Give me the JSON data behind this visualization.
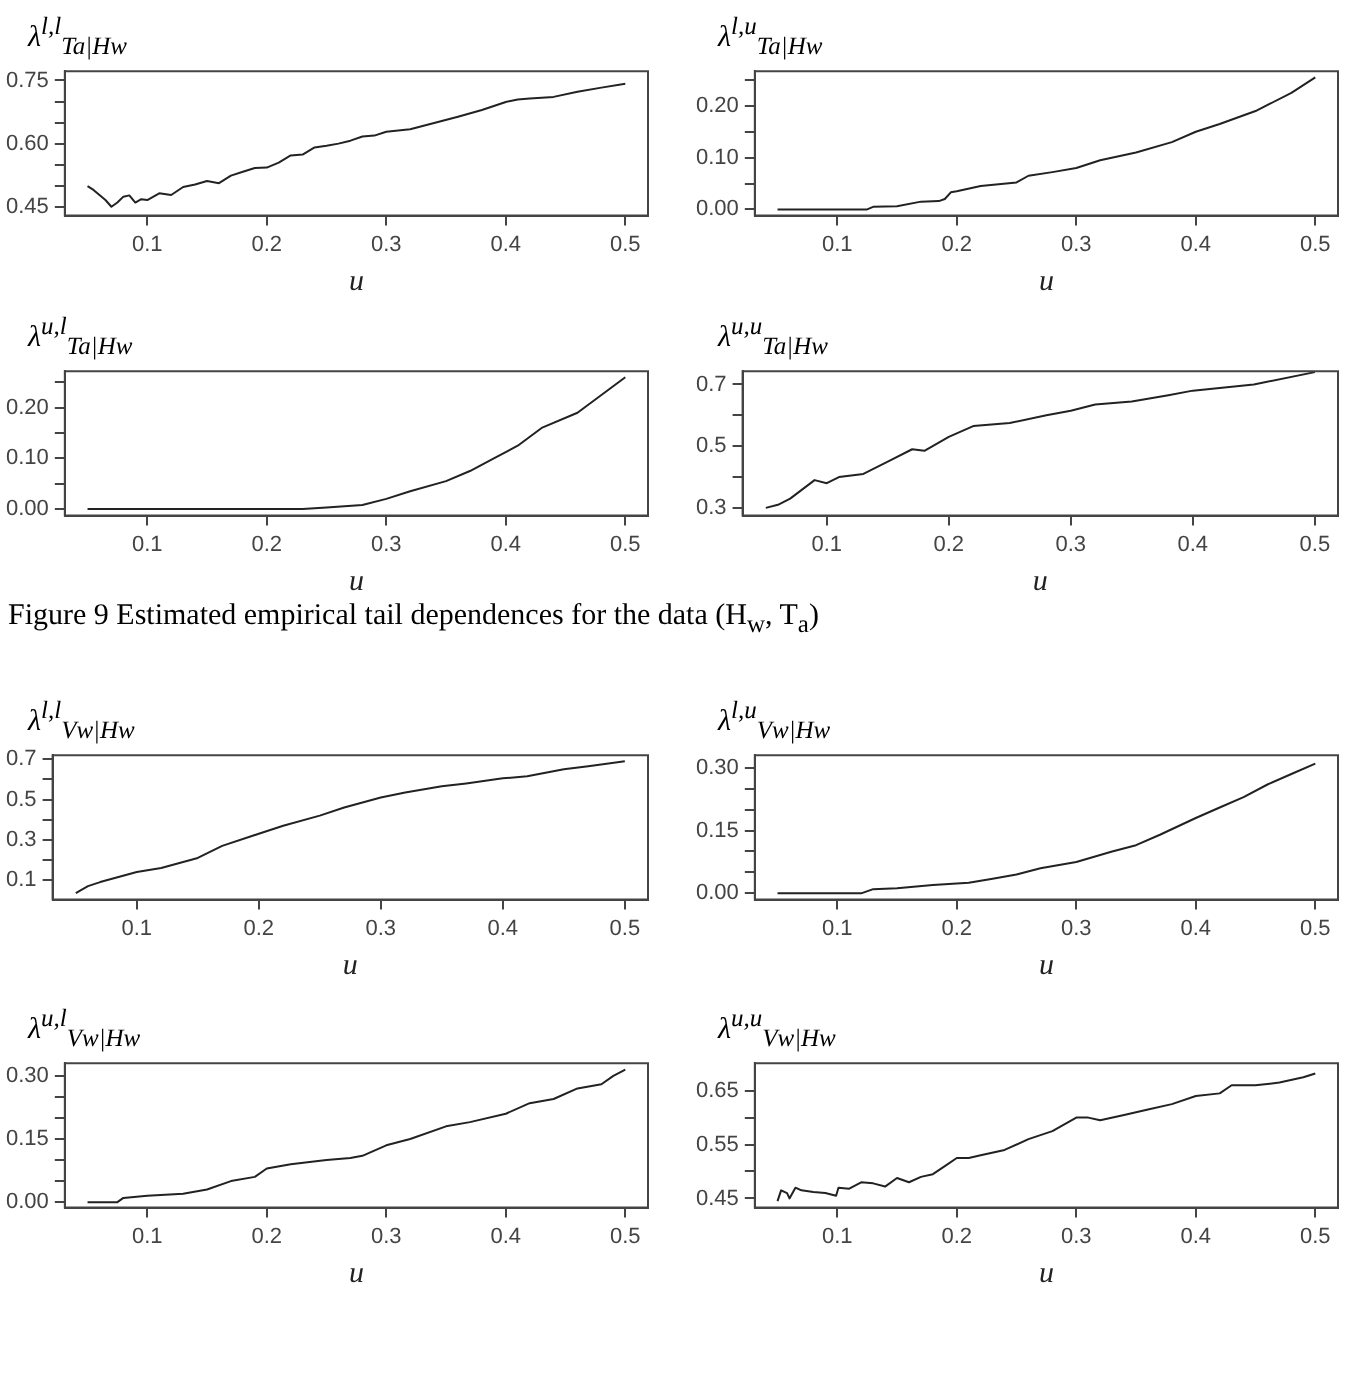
{
  "chart_data": [
    {
      "type": "line",
      "title": "λ$^{l,l}$$_{Ta|Hw}$",
      "xlabel": "u",
      "color": "#222222",
      "xlim": [
        0.031,
        0.519
      ],
      "ylim": [
        0.429,
        0.772
      ],
      "xticks": [
        0.1,
        0.2,
        0.3,
        0.4,
        0.5
      ],
      "yticks": [
        0.45,
        {
          "value": 0.5,
          "label": null
        },
        {
          "value": 0.55,
          "label": null
        },
        {
          "value": 0.6,
          "label": "0.60"
        },
        {
          "value": 0.65,
          "label": null
        },
        {
          "value": 0.7,
          "label": null
        },
        0.75
      ],
      "x": [
        0.05,
        0.055,
        0.06,
        0.065,
        0.07,
        0.075,
        0.08,
        0.085,
        0.09,
        0.095,
        0.1,
        0.11,
        0.12,
        0.13,
        0.14,
        0.15,
        0.16,
        0.17,
        0.18,
        0.19,
        0.2,
        0.21,
        0.22,
        0.23,
        0.24,
        0.25,
        0.26,
        0.27,
        0.28,
        0.29,
        0.3,
        0.32,
        0.34,
        0.36,
        0.38,
        0.4,
        0.41,
        0.42,
        0.44,
        0.46,
        0.48,
        0.5
      ],
      "values": [
        0.499,
        0.49,
        0.478,
        0.466,
        0.45,
        0.46,
        0.474,
        0.477,
        0.46,
        0.468,
        0.466,
        0.482,
        0.478,
        0.497,
        0.503,
        0.511,
        0.506,
        0.524,
        0.533,
        0.542,
        0.543,
        0.555,
        0.572,
        0.574,
        0.591,
        0.595,
        0.6,
        0.607,
        0.617,
        0.619,
        0.628,
        0.634,
        0.649,
        0.664,
        0.68,
        0.699,
        0.705,
        0.707,
        0.711,
        0.723,
        0.733,
        0.742
      ]
    },
    {
      "type": "line",
      "title": "λ$^{l,u}$$_{Ta|Hw}$",
      "xlabel": "u",
      "color": "#222222",
      "xlim": [
        0.031,
        0.519
      ],
      "ylim": [
        -0.012,
        0.267
      ],
      "xticks": [
        0.1,
        0.2,
        0.3,
        0.4,
        0.5
      ],
      "yticks": [
        {
          "value": 0,
          "label": "0.00"
        },
        {
          "value": 0.05,
          "label": null
        },
        {
          "value": 0.1,
          "label": "0.10"
        },
        {
          "value": 0.15,
          "label": null
        },
        {
          "value": 0.2,
          "label": "0.20"
        },
        {
          "value": 0.25,
          "label": null
        }
      ],
      "x": [
        0.05,
        0.1,
        0.125,
        0.13,
        0.15,
        0.17,
        0.185,
        0.19,
        0.195,
        0.2,
        0.22,
        0.25,
        0.26,
        0.28,
        0.3,
        0.32,
        0.35,
        0.38,
        0.4,
        0.42,
        0.45,
        0.48,
        0.5
      ],
      "values": [
        0,
        0,
        0,
        0.005,
        0.006,
        0.015,
        0.016,
        0.02,
        0.033,
        0.035,
        0.045,
        0.052,
        0.065,
        0.072,
        0.08,
        0.095,
        0.11,
        0.13,
        0.15,
        0.165,
        0.19,
        0.225,
        0.255
      ]
    },
    {
      "type": "line",
      "title": "λ$^{u,l}$$_{Ta|Hw}$",
      "xlabel": "u",
      "color": "#222222",
      "xlim": [
        0.031,
        0.519
      ],
      "ylim": [
        -0.013,
        0.272
      ],
      "xticks": [
        0.1,
        0.2,
        0.3,
        0.4,
        0.5
      ],
      "yticks": [
        {
          "value": 0,
          "label": "0.00"
        },
        {
          "value": 0.05,
          "label": null
        },
        {
          "value": 0.1,
          "label": "0.10"
        },
        {
          "value": 0.15,
          "label": null
        },
        {
          "value": 0.2,
          "label": "0.20"
        },
        {
          "value": 0.25,
          "label": null
        }
      ],
      "x": [
        0.05,
        0.1,
        0.2,
        0.23,
        0.25,
        0.28,
        0.3,
        0.32,
        0.35,
        0.37,
        0.39,
        0.41,
        0.43,
        0.46,
        0.48,
        0.5
      ],
      "values": [
        0,
        0,
        0,
        0,
        0.003,
        0.008,
        0.02,
        0.035,
        0.055,
        0.075,
        0.1,
        0.125,
        0.16,
        0.19,
        0.225,
        0.26
      ]
    },
    {
      "type": "line",
      "title": "λ$^{u,u}$$_{Ta|Hw}$",
      "xlabel": "u",
      "color": "#222222",
      "xlim": [
        0.031,
        0.519
      ],
      "ylim": [
        0.275,
        0.743
      ],
      "xticks": [
        0.1,
        0.2,
        0.3,
        0.4,
        0.5
      ],
      "yticks": [
        0.3,
        {
          "value": 0.4,
          "label": null
        },
        0.5,
        {
          "value": 0.6,
          "label": null
        },
        0.7
      ],
      "x": [
        0.05,
        0.06,
        0.07,
        0.08,
        0.09,
        0.1,
        0.11,
        0.13,
        0.15,
        0.17,
        0.18,
        0.2,
        0.22,
        0.25,
        0.28,
        0.3,
        0.32,
        0.35,
        0.38,
        0.4,
        0.45,
        0.5
      ],
      "values": [
        0.3,
        0.31,
        0.33,
        0.36,
        0.39,
        0.38,
        0.4,
        0.41,
        0.45,
        0.49,
        0.485,
        0.53,
        0.565,
        0.575,
        0.6,
        0.615,
        0.635,
        0.645,
        0.665,
        0.68,
        0.7,
        0.74
      ]
    },
    {
      "type": "other",
      "title": "Figure 9 Estimated empirical tail dependences for the data (H$_{w}$, T$_{a}$)"
    },
    {
      "type": "line",
      "title": "λ$^{l,l}$$_{Vw|Hw}$",
      "xlabel": "u",
      "color": "#222222",
      "xlim": [
        0.031,
        0.519
      ],
      "ylim": [
        0.003,
        0.72
      ],
      "xticks": [
        0.1,
        0.2,
        0.3,
        0.4,
        0.5
      ],
      "yticks": [
        0.1,
        {
          "value": 0.2,
          "label": null
        },
        0.3,
        {
          "value": 0.4,
          "label": null
        },
        0.5,
        {
          "value": 0.6,
          "label": null
        },
        0.7
      ],
      "x": [
        0.05,
        0.06,
        0.07,
        0.1,
        0.12,
        0.15,
        0.17,
        0.2,
        0.22,
        0.25,
        0.27,
        0.3,
        0.32,
        0.35,
        0.37,
        0.4,
        0.42,
        0.45,
        0.47,
        0.5
      ],
      "values": [
        0.035,
        0.07,
        0.09,
        0.14,
        0.16,
        0.21,
        0.27,
        0.33,
        0.37,
        0.42,
        0.46,
        0.51,
        0.535,
        0.566,
        0.58,
        0.605,
        0.615,
        0.65,
        0.665,
        0.69
      ]
    },
    {
      "type": "line",
      "title": "λ$^{l,u}$$_{Vw|Hw}$",
      "xlabel": "u",
      "color": "#222222",
      "xlim": [
        0.031,
        0.519
      ],
      "ylim": [
        -0.015,
        0.33
      ],
      "xticks": [
        0.1,
        0.2,
        0.3,
        0.4,
        0.5
      ],
      "yticks": [
        {
          "value": 0,
          "label": "0.00"
        },
        {
          "value": 0.05,
          "label": null
        },
        {
          "value": 0.1,
          "label": null
        },
        0.15,
        {
          "value": 0.2,
          "label": null
        },
        {
          "value": 0.25,
          "label": null
        },
        {
          "value": 0.3,
          "label": "0.30"
        }
      ],
      "x": [
        0.05,
        0.1,
        0.12,
        0.13,
        0.15,
        0.18,
        0.21,
        0.23,
        0.25,
        0.27,
        0.3,
        0.33,
        0.35,
        0.37,
        0.4,
        0.42,
        0.44,
        0.46,
        0.48,
        0.5
      ],
      "values": [
        0,
        0,
        0,
        0.01,
        0.012,
        0.02,
        0.025,
        0.035,
        0.045,
        0.06,
        0.075,
        0.1,
        0.115,
        0.14,
        0.18,
        0.205,
        0.23,
        0.26,
        0.285,
        0.31
      ]
    },
    {
      "type": "line",
      "title": "λ$^{u,l}$$_{Vw|Hw}$",
      "xlabel": "u",
      "color": "#222222",
      "xlim": [
        0.031,
        0.519
      ],
      "ylim": [
        -0.013,
        0.33
      ],
      "xticks": [
        0.1,
        0.2,
        0.3,
        0.4,
        0.5
      ],
      "yticks": [
        {
          "value": 0,
          "label": "0.00"
        },
        {
          "value": 0.05,
          "label": null
        },
        {
          "value": 0.1,
          "label": null
        },
        0.15,
        {
          "value": 0.2,
          "label": null
        },
        {
          "value": 0.25,
          "label": null
        },
        {
          "value": 0.3,
          "label": "0.30"
        }
      ],
      "x": [
        0.05,
        0.075,
        0.08,
        0.1,
        0.13,
        0.15,
        0.17,
        0.19,
        0.2,
        0.22,
        0.25,
        0.27,
        0.28,
        0.3,
        0.32,
        0.35,
        0.37,
        0.4,
        0.42,
        0.44,
        0.46,
        0.48,
        0.49,
        0.5
      ],
      "values": [
        0,
        0,
        0.01,
        0.015,
        0.02,
        0.03,
        0.05,
        0.06,
        0.08,
        0.09,
        0.1,
        0.105,
        0.11,
        0.135,
        0.15,
        0.18,
        0.19,
        0.21,
        0.235,
        0.245,
        0.27,
        0.28,
        0.3,
        0.315
      ]
    },
    {
      "type": "line",
      "title": "λ$^{u,u}$$_{Vw|Hw}$",
      "xlabel": "u",
      "color": "#222222",
      "xlim": [
        0.031,
        0.519
      ],
      "ylim": [
        0.433,
        0.701
      ],
      "xticks": [
        0.1,
        0.2,
        0.3,
        0.4,
        0.5
      ],
      "yticks": [
        0.45,
        {
          "value": 0.5,
          "label": null
        },
        0.55,
        {
          "value": 0.6,
          "label": null
        },
        0.65
      ],
      "x": [
        0.05,
        0.053,
        0.058,
        0.06,
        0.065,
        0.07,
        0.08,
        0.09,
        0.099,
        0.101,
        0.11,
        0.12,
        0.13,
        0.14,
        0.15,
        0.16,
        0.17,
        0.18,
        0.19,
        0.2,
        0.21,
        0.22,
        0.24,
        0.26,
        0.28,
        0.3,
        0.31,
        0.32,
        0.34,
        0.36,
        0.38,
        0.4,
        0.42,
        0.43,
        0.45,
        0.47,
        0.49,
        0.5
      ],
      "values": [
        0.445,
        0.465,
        0.46,
        0.45,
        0.47,
        0.465,
        0.462,
        0.46,
        0.455,
        0.47,
        0.468,
        0.48,
        0.478,
        0.472,
        0.488,
        0.48,
        0.49,
        0.495,
        0.51,
        0.525,
        0.525,
        0.53,
        0.54,
        0.56,
        0.575,
        0.6,
        0.6,
        0.595,
        0.605,
        0.615,
        0.625,
        0.64,
        0.645,
        0.66,
        0.66,
        0.665,
        0.675,
        0.682
      ]
    }
  ]
}
